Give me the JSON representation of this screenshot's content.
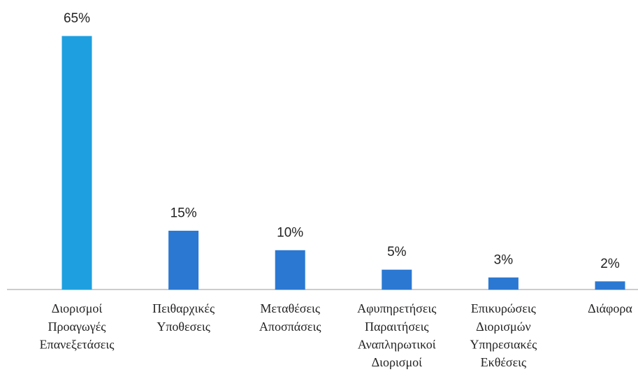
{
  "chart_data": {
    "type": "bar",
    "categories": [
      [
        "Διορισμοί",
        "Προαγωγές",
        "Επανεξετάσεις"
      ],
      [
        "Πειθαρχικές",
        "Υποθεσεις"
      ],
      [
        "Μεταθέσεις",
        "Αποσπάσεις"
      ],
      [
        "Αφυπηρετήσεις",
        "Παραιτήσεις",
        "Αναπληρωτικοί",
        "Διορισμοί"
      ],
      [
        "Επικυρώσεις",
        "Διορισμών",
        "Υπηρεσιακές",
        "Εκθέσεις"
      ],
      [
        "Διάφορα"
      ]
    ],
    "values": [
      65,
      15,
      10,
      5,
      3,
      2
    ],
    "value_labels": [
      "65%",
      "15%",
      "10%",
      "5%",
      "3%",
      "2%"
    ],
    "colors": [
      "#1e9fe0",
      "#2b78d2",
      "#2b78d2",
      "#2b78d2",
      "#2b78d2",
      "#2b78d2"
    ]
  }
}
